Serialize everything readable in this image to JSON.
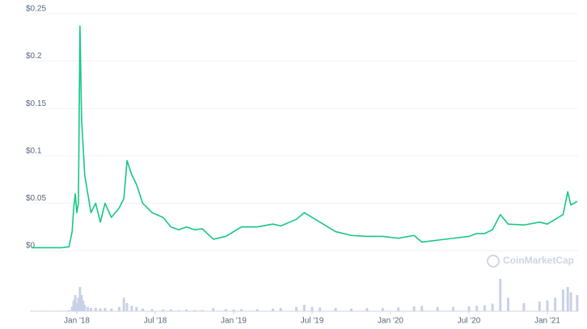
{
  "chart_data": {
    "type": "line",
    "x": [
      2017.71,
      2017.8,
      2017.9,
      2017.95,
      2017.97,
      2017.98,
      2017.99,
      2018.0,
      2018.01,
      2018.02,
      2018.03,
      2018.04,
      2018.05,
      2018.07,
      2018.09,
      2018.12,
      2018.15,
      2018.18,
      2018.22,
      2018.27,
      2018.3,
      2018.32,
      2018.35,
      2018.38,
      2018.42,
      2018.48,
      2018.55,
      2018.6,
      2018.65,
      2018.7,
      2018.75,
      2018.8,
      2018.87,
      2018.95,
      2019.0,
      2019.05,
      2019.15,
      2019.25,
      2019.3,
      2019.4,
      2019.45,
      2019.5,
      2019.55,
      2019.65,
      2019.75,
      2019.85,
      2019.95,
      2020.05,
      2020.15,
      2020.2,
      2020.3,
      2020.4,
      2020.5,
      2020.55,
      2020.6,
      2020.65,
      2020.7,
      2020.75,
      2020.85,
      2020.95,
      2021.0,
      2021.05,
      2021.1,
      2021.13,
      2021.15,
      2021.19
    ],
    "series": [
      {
        "color": "#16c784",
        "values": [
          0.003,
          0.003,
          0.003,
          0.004,
          0.02,
          0.045,
          0.06,
          0.04,
          0.05,
          0.237,
          0.14,
          0.11,
          0.08,
          0.06,
          0.04,
          0.05,
          0.03,
          0.05,
          0.035,
          0.045,
          0.055,
          0.095,
          0.08,
          0.07,
          0.05,
          0.04,
          0.035,
          0.025,
          0.022,
          0.025,
          0.022,
          0.023,
          0.012,
          0.015,
          0.02,
          0.025,
          0.025,
          0.028,
          0.026,
          0.033,
          0.04,
          0.035,
          0.03,
          0.02,
          0.016,
          0.015,
          0.015,
          0.013,
          0.016,
          0.009,
          0.011,
          0.013,
          0.015,
          0.018,
          0.018,
          0.022,
          0.038,
          0.028,
          0.027,
          0.03,
          0.028,
          0.033,
          0.038,
          0.062,
          0.048,
          0.052
        ]
      }
    ],
    "volume": {
      "color": "#c9d1e6",
      "values": [
        1,
        1,
        1,
        2,
        8,
        20,
        30,
        15,
        25,
        45,
        30,
        20,
        12,
        8,
        6,
        6,
        5,
        6,
        5,
        8,
        25,
        15,
        10,
        8,
        5,
        4,
        3,
        3,
        2,
        3,
        2,
        2,
        6,
        4,
        3,
        4,
        4,
        5,
        6,
        8,
        12,
        8,
        7,
        6,
        5,
        6,
        6,
        7,
        9,
        10,
        8,
        8,
        9,
        10,
        11,
        14,
        60,
        25,
        15,
        18,
        20,
        25,
        40,
        45,
        35,
        30
      ]
    },
    "xlim": [
      2017.706,
      2021.196
    ],
    "xticks": [
      {
        "value": 2018,
        "label": "Jan '18"
      },
      {
        "value": 2018.5,
        "label": "Jul '18"
      },
      {
        "value": 2019,
        "label": "Jan '19"
      },
      {
        "value": 2019.5,
        "label": "Jul '19"
      },
      {
        "value": 2020,
        "label": "Jan '20"
      },
      {
        "value": 2020.5,
        "label": "Jul '20"
      },
      {
        "value": 2021,
        "label": "Jan '21"
      }
    ],
    "ylim": [
      0,
      0.25
    ],
    "yticks": [
      {
        "value": 0,
        "label": "$0"
      },
      {
        "value": 0.05,
        "label": "$0.05"
      },
      {
        "value": 0.1,
        "label": "$0.1"
      },
      {
        "value": 0.15,
        "label": "$0.15"
      },
      {
        "value": 0.2,
        "label": "$0.2"
      },
      {
        "value": 0.25,
        "label": "$0.25"
      }
    ],
    "grid": true,
    "watermark": "CoinMarketCap"
  }
}
